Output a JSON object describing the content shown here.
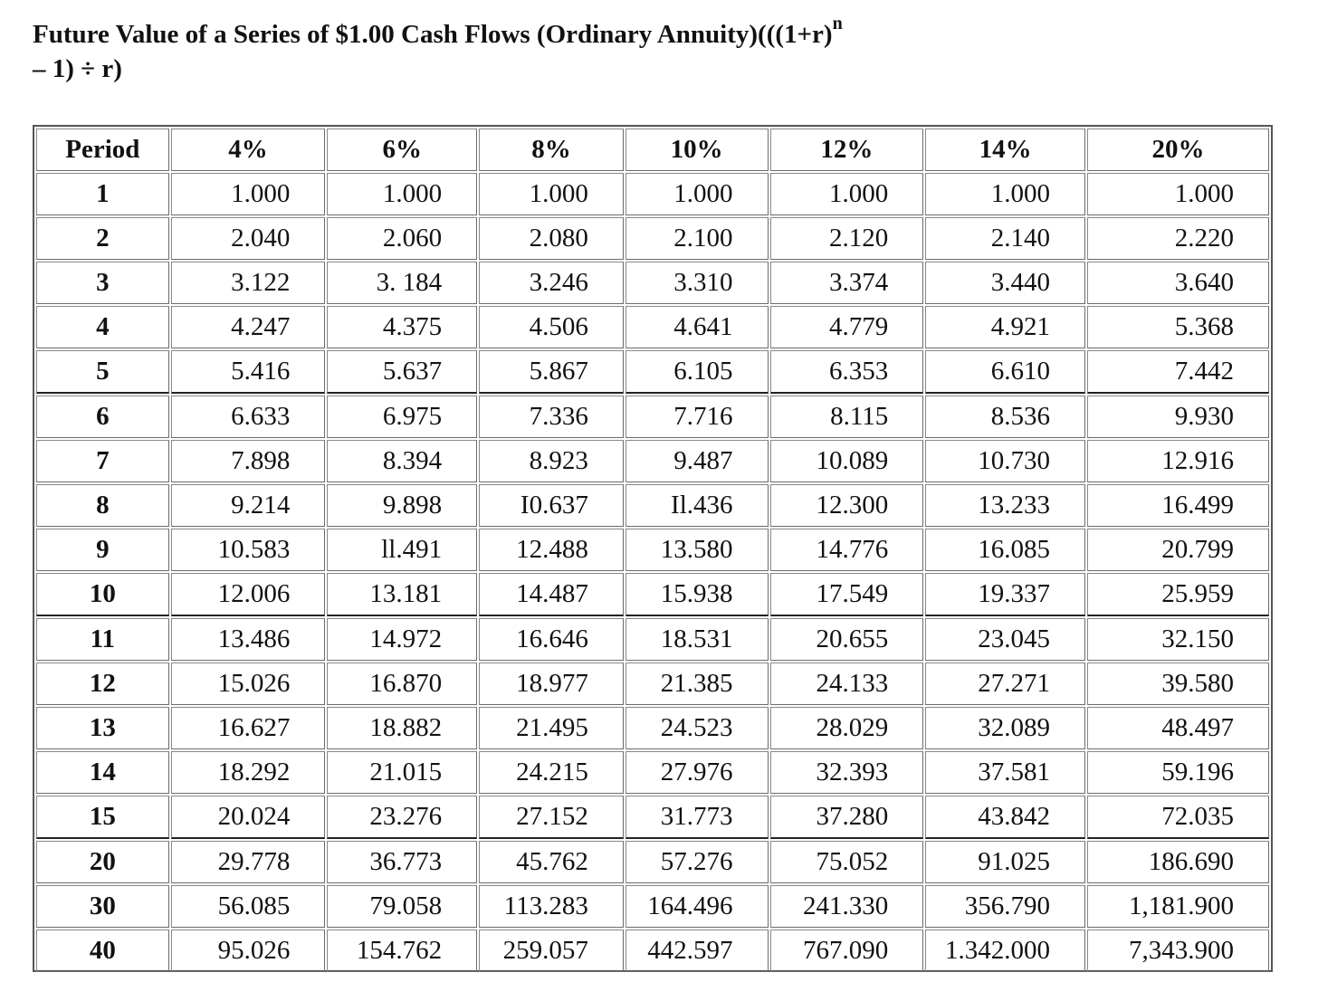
{
  "title": {
    "main": "Future Value of a Series of $1.00 Cash Flows (Ordinary Annuity)(((1+r)",
    "sup": "n",
    "cont": "– 1) ÷ r)"
  },
  "table": {
    "headers": [
      "Period",
      "4%",
      "6%",
      "8%",
      "10%",
      "12%",
      "14%",
      "20%"
    ],
    "rows": [
      [
        "1",
        "1.000",
        "1.000",
        "1.000",
        "1.000",
        "1.000",
        "1.000",
        "1.000"
      ],
      [
        "2",
        "2.040",
        "2.060",
        "2.080",
        "2.100",
        "2.120",
        "2.140",
        "2.220"
      ],
      [
        "3",
        "3.122",
        "3. 184",
        "3.246",
        "3.310",
        "3.374",
        "3.440",
        "3.640"
      ],
      [
        "4",
        "4.247",
        "4.375",
        "4.506",
        "4.641",
        "4.779",
        "4.921",
        "5.368"
      ],
      [
        "5",
        "5.416",
        "5.637",
        "5.867",
        "6.105",
        "6.353",
        "6.610",
        "7.442"
      ],
      [
        "6",
        "6.633",
        "6.975",
        "7.336",
        "7.716",
        "8.115",
        "8.536",
        "9.930"
      ],
      [
        "7",
        "7.898",
        "8.394",
        "8.923",
        "9.487",
        "10.089",
        "10.730",
        "12.916"
      ],
      [
        "8",
        "9.214",
        "9.898",
        "I0.637",
        "Il.436",
        "12.300",
        "13.233",
        "16.499"
      ],
      [
        "9",
        "10.583",
        "ll.491",
        "12.488",
        "13.580",
        "14.776",
        "16.085",
        "20.799"
      ],
      [
        "10",
        "12.006",
        "13.181",
        "14.487",
        "15.938",
        "17.549",
        "19.337",
        "25.959"
      ],
      [
        "11",
        "13.486",
        "14.972",
        "16.646",
        "18.531",
        "20.655",
        "23.045",
        "32.150"
      ],
      [
        "12",
        "15.026",
        "16.870",
        "18.977",
        "21.385",
        "24.133",
        "27.271",
        "39.580"
      ],
      [
        "13",
        "16.627",
        "18.882",
        "21.495",
        "24.523",
        "28.029",
        "32.089",
        "48.497"
      ],
      [
        "14",
        "18.292",
        "21.015",
        "24.215",
        "27.976",
        "32.393",
        "37.581",
        "59.196"
      ],
      [
        "15",
        "20.024",
        "23.276",
        "27.152",
        "31.773",
        "37.280",
        "43.842",
        "72.035"
      ],
      [
        "20",
        "29.778",
        "36.773",
        "45.762",
        "57.276",
        "75.052",
        "91.025",
        "186.690"
      ],
      [
        "30",
        "56.085",
        "79.058",
        "113.283",
        "164.496",
        "241.330",
        "356.790",
        "1,181.900"
      ],
      [
        "40",
        "95.026",
        "154.762",
        "259.057",
        "442.597",
        "767.090",
        "1.342.000",
        "7,343.900"
      ]
    ]
  }
}
